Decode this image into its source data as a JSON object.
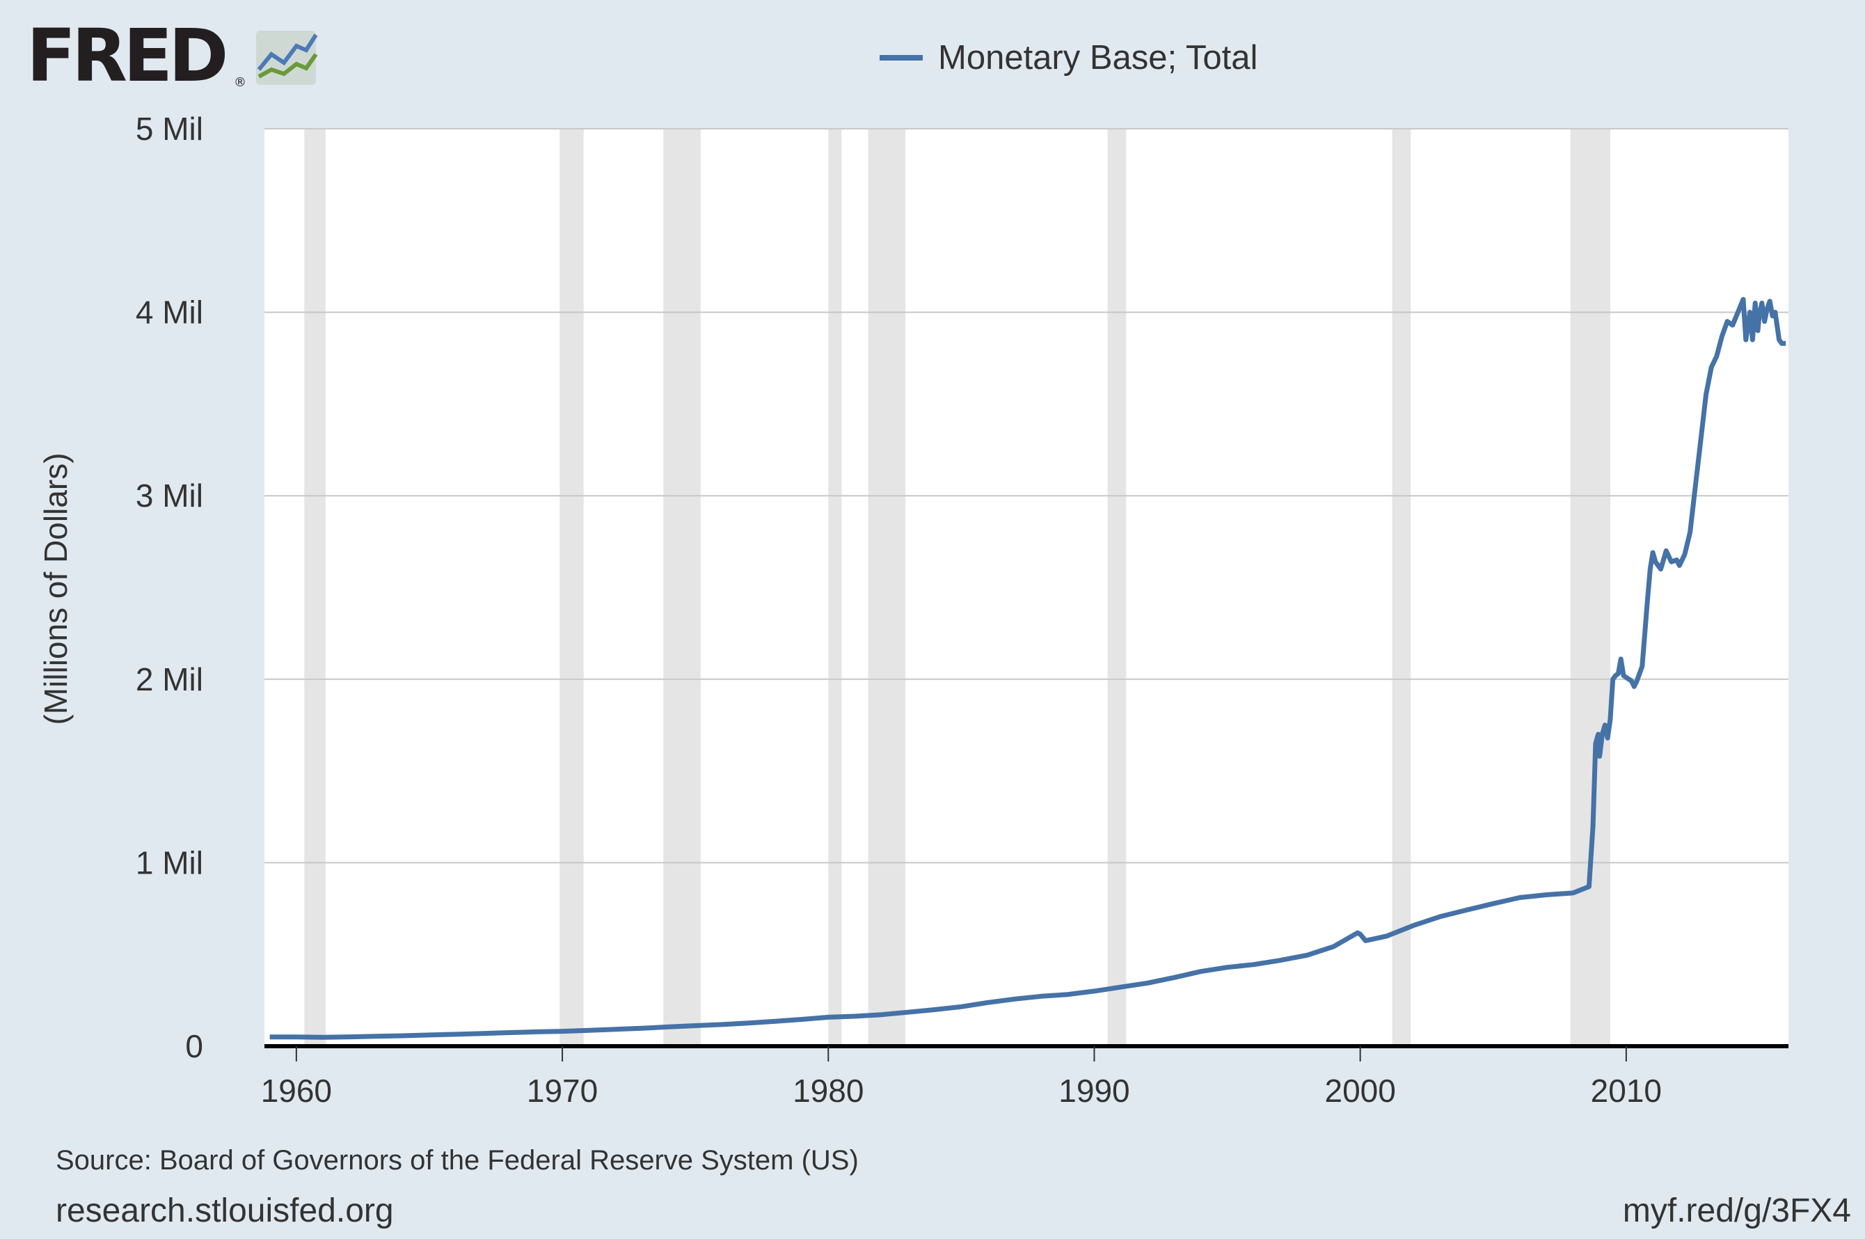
{
  "brand": {
    "logo_text": "FRED",
    "trademark": "®",
    "colors": {
      "logo_text": "#231f20",
      "icon_blue": "#4c7ab7",
      "icon_green": "#6a9a3a",
      "icon_bg": "#cfd9d3"
    }
  },
  "footer": {
    "source": "Source: Board of Governors of the Federal Reserve System (US)",
    "site": "research.stlouisfed.org",
    "short_url": "myf.red/g/3FX4"
  },
  "colors": {
    "background": "#e1e9f0",
    "plot_background": "#ffffff",
    "series_line": "#4572a7",
    "recession_band": "#e5e5e5",
    "gridline": "#c8c8c8",
    "text": "#333333"
  },
  "chart_data": {
    "type": "line",
    "title": "",
    "xlabel": "",
    "ylabel": "(Millions of Dollars)",
    "xlim": [
      1958.8,
      2016.1
    ],
    "ylim": [
      0,
      5000000
    ],
    "grid": true,
    "legend_position": "top-center",
    "x_ticks": [
      {
        "value": 1960,
        "label": "1960"
      },
      {
        "value": 1970,
        "label": "1970"
      },
      {
        "value": 1980,
        "label": "1980"
      },
      {
        "value": 1990,
        "label": "1990"
      },
      {
        "value": 2000,
        "label": "2000"
      },
      {
        "value": 2010,
        "label": "2010"
      }
    ],
    "y_ticks": [
      {
        "value": 0,
        "label": "0"
      },
      {
        "value": 1000000,
        "label": "1 Mil"
      },
      {
        "value": 2000000,
        "label": "2 Mil"
      },
      {
        "value": 3000000,
        "label": "3 Mil"
      },
      {
        "value": 4000000,
        "label": "4 Mil"
      },
      {
        "value": 5000000,
        "label": "5 Mil"
      }
    ],
    "recessions": [
      [
        1960.3,
        1961.1
      ],
      [
        1969.9,
        1970.8
      ],
      [
        1973.8,
        1975.2
      ],
      [
        1980.0,
        1980.5
      ],
      [
        1981.5,
        1982.9
      ],
      [
        1990.5,
        1991.2
      ],
      [
        2001.2,
        2001.9
      ],
      [
        2007.9,
        2009.4
      ]
    ],
    "series": [
      {
        "name": "Monetary Base; Total",
        "color": "#4572a7",
        "x": [
          1959.0,
          1960.0,
          1961.0,
          1962.0,
          1963.0,
          1964.0,
          1965.0,
          1966.0,
          1967.0,
          1968.0,
          1969.0,
          1970.0,
          1971.0,
          1972.0,
          1973.0,
          1974.0,
          1975.0,
          1976.0,
          1977.0,
          1978.0,
          1979.0,
          1980.0,
          1981.0,
          1982.0,
          1983.0,
          1984.0,
          1985.0,
          1986.0,
          1987.0,
          1988.0,
          1989.0,
          1990.0,
          1991.0,
          1992.0,
          1993.0,
          1994.0,
          1995.0,
          1996.0,
          1997.0,
          1998.0,
          1999.0,
          1999.9,
          2000.0,
          2000.2,
          2001.0,
          2002.0,
          2003.0,
          2004.0,
          2005.0,
          2006.0,
          2007.0,
          2008.0,
          2008.6,
          2008.75,
          2008.85,
          2008.95,
          2009.0,
          2009.1,
          2009.2,
          2009.3,
          2009.4,
          2009.5,
          2009.6,
          2009.7,
          2009.8,
          2009.9,
          2010.0,
          2010.1,
          2010.2,
          2010.3,
          2010.4,
          2010.6,
          2010.8,
          2010.9,
          2011.0,
          2011.1,
          2011.2,
          2011.3,
          2011.4,
          2011.5,
          2011.7,
          2011.9,
          2012.0,
          2012.2,
          2012.4,
          2012.6,
          2012.8,
          2013.0,
          2013.2,
          2013.4,
          2013.6,
          2013.8,
          2014.0,
          2014.2,
          2014.4,
          2014.5,
          2014.65,
          2014.75,
          2014.85,
          2014.95,
          2015.0,
          2015.1,
          2015.2,
          2015.3,
          2015.4,
          2015.5,
          2015.6,
          2015.75,
          2015.85,
          2015.95,
          2016.0
        ],
        "y": [
          50000,
          50000,
          48000,
          51000,
          54000,
          57000,
          61000,
          65000,
          69000,
          74000,
          78000,
          81000,
          86000,
          92000,
          98000,
          105000,
          112000,
          118000,
          126000,
          136000,
          146000,
          158000,
          163000,
          172000,
          185000,
          199000,
          215000,
          238000,
          257000,
          272000,
          282000,
          300000,
          322000,
          344000,
          374000,
          407000,
          430000,
          445000,
          468000,
          496000,
          543000,
          618000,
          610000,
          575000,
          600000,
          658000,
          706000,
          742000,
          777000,
          810000,
          825000,
          835000,
          870000,
          1200000,
          1650000,
          1700000,
          1580000,
          1700000,
          1750000,
          1680000,
          1780000,
          2000000,
          2020000,
          2030000,
          2110000,
          2020000,
          2010000,
          2000000,
          1990000,
          1960000,
          1990000,
          2070000,
          2430000,
          2600000,
          2690000,
          2640000,
          2620000,
          2600000,
          2650000,
          2700000,
          2640000,
          2650000,
          2620000,
          2680000,
          2800000,
          3050000,
          3300000,
          3550000,
          3700000,
          3760000,
          3870000,
          3950000,
          3930000,
          4000000,
          4070000,
          3850000,
          4000000,
          3850000,
          4050000,
          3900000,
          3980000,
          4050000,
          3950000,
          4020000,
          4060000,
          3980000,
          4000000,
          3850000,
          3830000,
          3830000,
          3830000
        ]
      }
    ]
  }
}
